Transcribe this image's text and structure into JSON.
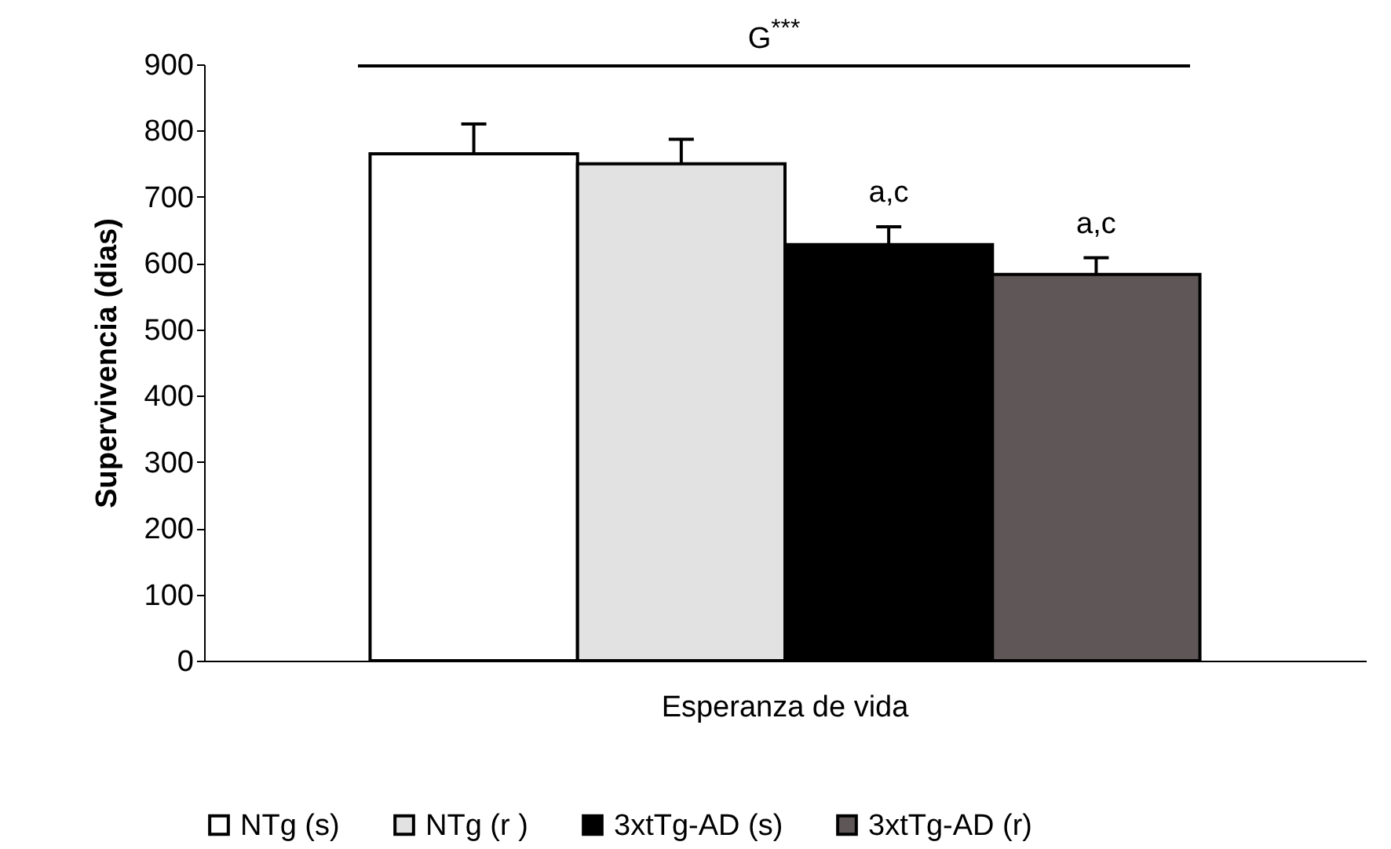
{
  "chart_data": {
    "type": "bar",
    "ylabel": "Supervivencia (dias)",
    "categories": [
      "Esperanza de vida"
    ],
    "series": [
      {
        "name": "NTg (s)",
        "color": "#ffffff",
        "values": [
          765
        ],
        "errors": [
          45
        ]
      },
      {
        "name": "NTg (r )",
        "color": "#e2e2e2",
        "values": [
          750
        ],
        "errors": [
          37
        ]
      },
      {
        "name": "3xtTg-AD (s)",
        "color": "#000000",
        "values": [
          628
        ],
        "errors": [
          27
        ]
      },
      {
        "name": "3xtTg-AD (r)",
        "color": "#5f5757",
        "values": [
          583
        ],
        "errors": [
          25
        ]
      }
    ],
    "ylim": [
      0,
      900
    ],
    "yticks": [
      0,
      100,
      200,
      300,
      400,
      500,
      600,
      700,
      800,
      900
    ],
    "grid": false,
    "legend": "bottom",
    "annotations": [
      "G$^{***}$",
      "a,c",
      "a,c"
    ]
  }
}
